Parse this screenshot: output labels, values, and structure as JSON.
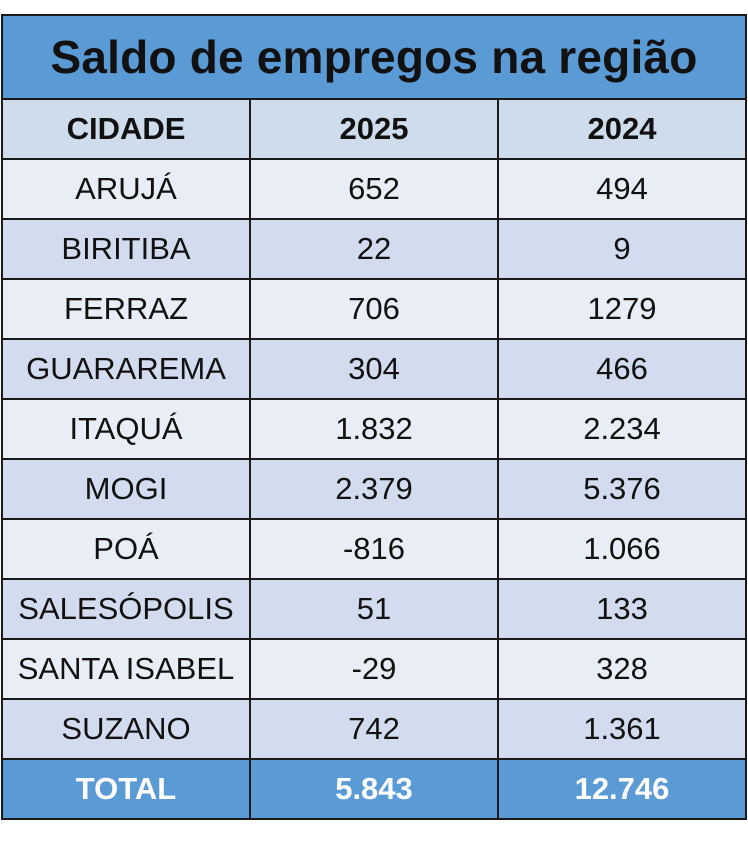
{
  "chart_data": {
    "type": "table",
    "title": "Saldo de empregos na região",
    "columns": [
      "CIDADE",
      "2025",
      "2024"
    ],
    "rows": [
      {
        "cidade": "ARUJÁ",
        "v2025": "652",
        "v2024": "494"
      },
      {
        "cidade": "BIRITIBA",
        "v2025": "22",
        "v2024": "9"
      },
      {
        "cidade": "FERRAZ",
        "v2025": "706",
        "v2024": "1279"
      },
      {
        "cidade": "GUARAREMA",
        "v2025": "304",
        "v2024": "466"
      },
      {
        "cidade": "ITAQUÁ",
        "v2025": "1.832",
        "v2024": "2.234"
      },
      {
        "cidade": "MOGI",
        "v2025": "2.379",
        "v2024": "5.376"
      },
      {
        "cidade": "POÁ",
        "v2025": "-816",
        "v2024": "1.066"
      },
      {
        "cidade": "SALESÓPOLIS",
        "v2025": "51",
        "v2024": "133"
      },
      {
        "cidade": "SANTA ISABEL",
        "v2025": "-29",
        "v2024": "328"
      },
      {
        "cidade": "SUZANO",
        "v2025": "742",
        "v2024": "1.361"
      }
    ],
    "total": {
      "label": "TOTAL",
      "v2025": "5.843",
      "v2024": "12.746"
    }
  },
  "colors": {
    "title_bg": "#5b9bd5",
    "total_bg": "#5b9bd5",
    "header_bg": "#cfdcec",
    "row_dark": "#d2dcee",
    "row_light": "#e9edf5",
    "border": "#1a1a1a",
    "total_text": "#ffffff"
  }
}
